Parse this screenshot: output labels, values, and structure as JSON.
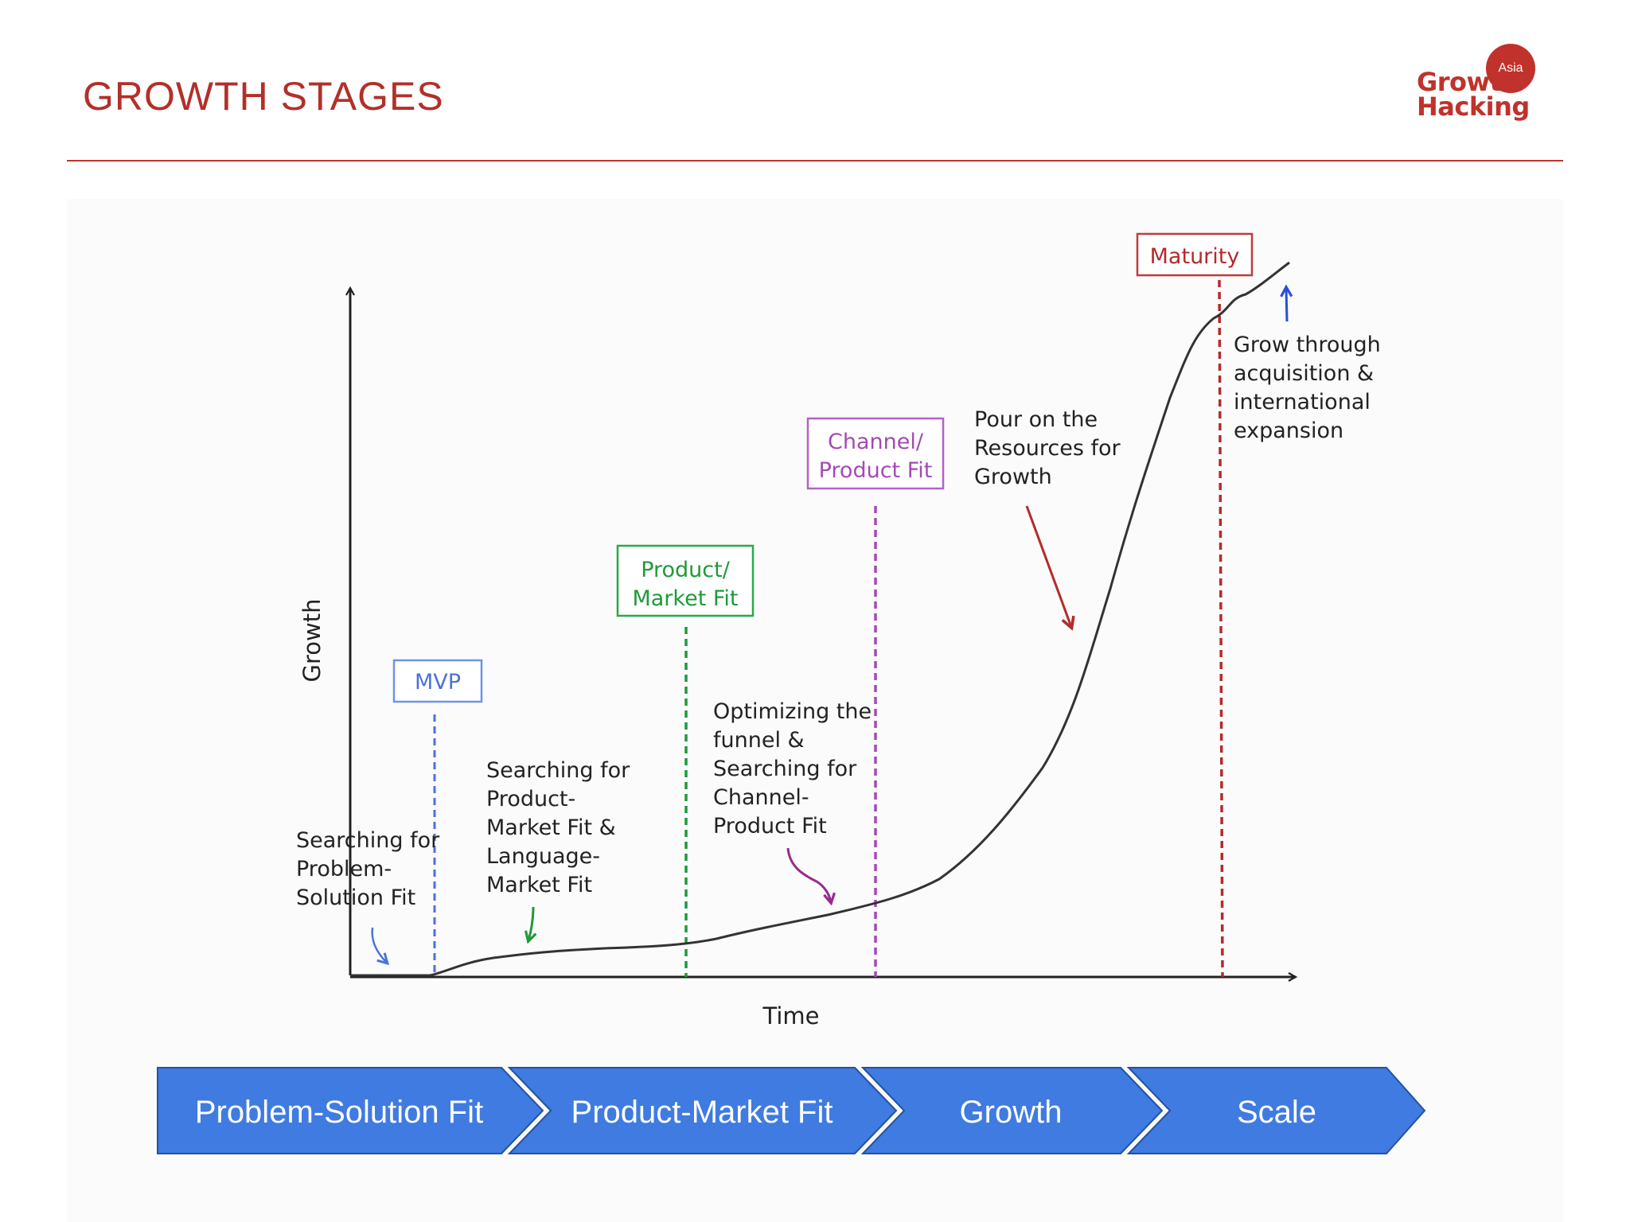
{
  "header": {
    "title": "GROWTH STAGES"
  },
  "logo": {
    "badge_text": "Asia",
    "line1": "Growth",
    "line2": "Hacking",
    "color": "#c0322b"
  },
  "diagram": {
    "axes": {
      "y_label": "Growth",
      "x_label": "Time"
    },
    "milestones": [
      {
        "label_lines": [
          "MVP"
        ],
        "color": "#4a72d8"
      },
      {
        "label_lines": [
          "Product/",
          "Market Fit"
        ],
        "color": "#1e9a3a"
      },
      {
        "label_lines": [
          "Channel/",
          "Product Fit"
        ],
        "color": "#a34ab5"
      },
      {
        "label_lines": [
          "Maturity"
        ],
        "color": "#b52a2a"
      }
    ],
    "annotations": [
      {
        "lines": [
          "Searching for",
          "Problem-",
          "Solution Fit"
        ],
        "arrow_color": "#4a72d8"
      },
      {
        "lines": [
          "Searching for",
          "Product-",
          "Market Fit &",
          "Language-",
          "Market Fit"
        ],
        "arrow_color": "#1e9a3a"
      },
      {
        "lines": [
          "Optimizing the",
          "funnel &",
          "Searching for",
          "Channel-",
          "Product Fit"
        ],
        "arrow_color": "#9a2a8f"
      },
      {
        "lines": [
          "Pour on the",
          "Resources for",
          "Growth"
        ],
        "arrow_color": "#b52a2a"
      },
      {
        "lines": [
          "Grow through",
          "acquisition &",
          "international",
          "expansion"
        ],
        "arrow_color": "#2a4fd8"
      }
    ]
  },
  "stages": {
    "color": "#3f7be0",
    "items": [
      {
        "label": "Problem-Solution Fit"
      },
      {
        "label": "Product-Market Fit"
      },
      {
        "label": "Growth"
      },
      {
        "label": "Scale"
      }
    ]
  }
}
